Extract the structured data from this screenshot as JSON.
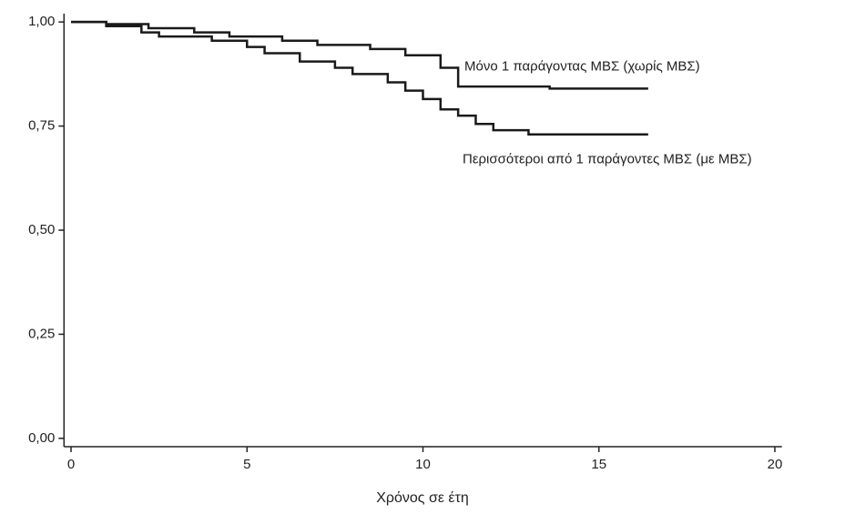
{
  "chart_data": {
    "type": "line",
    "step": true,
    "xlabel": "Χρόνος σε έτη",
    "xlim": [
      -0.2,
      20.2
    ],
    "xticks": [
      0,
      5,
      10,
      15,
      20
    ],
    "ylim": [
      -0.02,
      1.02
    ],
    "yticks": [
      {
        "value": 0,
        "label": "0,00"
      },
      {
        "value": 0.25,
        "label": "0,25"
      },
      {
        "value": 0.5,
        "label": "0,50"
      },
      {
        "value": 0.75,
        "label": "0,75"
      },
      {
        "value": 1,
        "label": "1,00"
      }
    ],
    "grid": false,
    "series": [
      {
        "name": "Μόνο 1 παράγοντας ΜΒΣ (χωρίς ΜΒΣ)",
        "color": "#1a1a1a",
        "x": [
          0,
          1,
          1,
          2.2,
          2.2,
          3.5,
          3.5,
          4.5,
          4.5,
          6,
          6,
          7,
          7,
          8.5,
          8.5,
          9.5,
          9.5,
          10.5,
          10.5,
          11,
          11,
          13.6,
          13.6,
          16.4
        ],
        "values": [
          1,
          1,
          0.995,
          0.995,
          0.985,
          0.985,
          0.975,
          0.975,
          0.965,
          0.965,
          0.955,
          0.955,
          0.945,
          0.945,
          0.935,
          0.935,
          0.92,
          0.92,
          0.89,
          0.89,
          0.845,
          0.845,
          0.84,
          0.84
        ]
      },
      {
        "name": "Περισσότεροι από 1 παράγοντες ΜΒΣ (με ΜΒΣ)",
        "color": "#1a1a1a",
        "x": [
          0,
          1,
          1,
          2,
          2,
          2.5,
          2.5,
          4,
          4,
          5,
          5,
          5.5,
          5.5,
          6.5,
          6.5,
          7.5,
          7.5,
          8,
          8,
          9,
          9,
          9.5,
          9.5,
          10,
          10,
          10.5,
          10.5,
          11,
          11,
          11.5,
          11.5,
          12,
          12,
          13,
          13,
          16.4
        ],
        "values": [
          1,
          1,
          0.99,
          0.99,
          0.975,
          0.975,
          0.965,
          0.965,
          0.955,
          0.955,
          0.94,
          0.94,
          0.925,
          0.925,
          0.905,
          0.905,
          0.89,
          0.89,
          0.875,
          0.875,
          0.855,
          0.855,
          0.835,
          0.835,
          0.815,
          0.815,
          0.79,
          0.79,
          0.775,
          0.775,
          0.755,
          0.755,
          0.74,
          0.74,
          0.73,
          0.73
        ]
      }
    ]
  }
}
